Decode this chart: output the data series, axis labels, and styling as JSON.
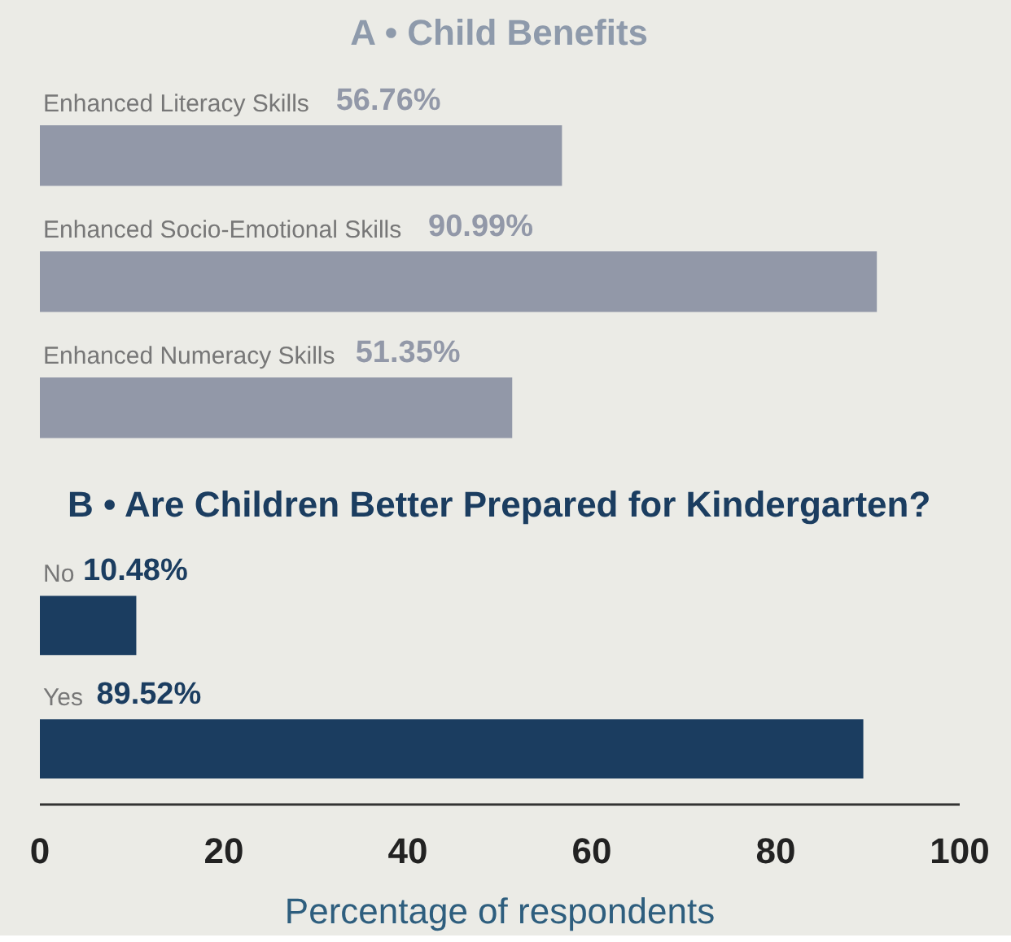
{
  "chart_data": [
    {
      "type": "bar",
      "orientation": "horizontal",
      "title": "A • Child Benefits",
      "categories": [
        "Enhanced Literacy Skills",
        "Enhanced Socio-Emotional Skills",
        "Enhanced Numeracy Skills"
      ],
      "values": [
        56.76,
        90.99,
        51.35
      ],
      "value_labels": [
        "56.76%",
        "90.99%",
        "51.35%"
      ],
      "color": "#9298a8",
      "xlim": [
        0,
        100
      ],
      "tick_labels": false
    },
    {
      "type": "bar",
      "orientation": "horizontal",
      "title": "B • Are Children Better Prepared for Kindergarten?",
      "xlabel": "Percentage of respondents",
      "categories": [
        "No",
        "Yes"
      ],
      "values": [
        10.48,
        89.52
      ],
      "value_labels": [
        "10.48%",
        "89.52%"
      ],
      "color": "#1b3d60",
      "xlim": [
        0,
        100
      ],
      "xticks": [
        0,
        20,
        40,
        60,
        80,
        100
      ]
    }
  ]
}
